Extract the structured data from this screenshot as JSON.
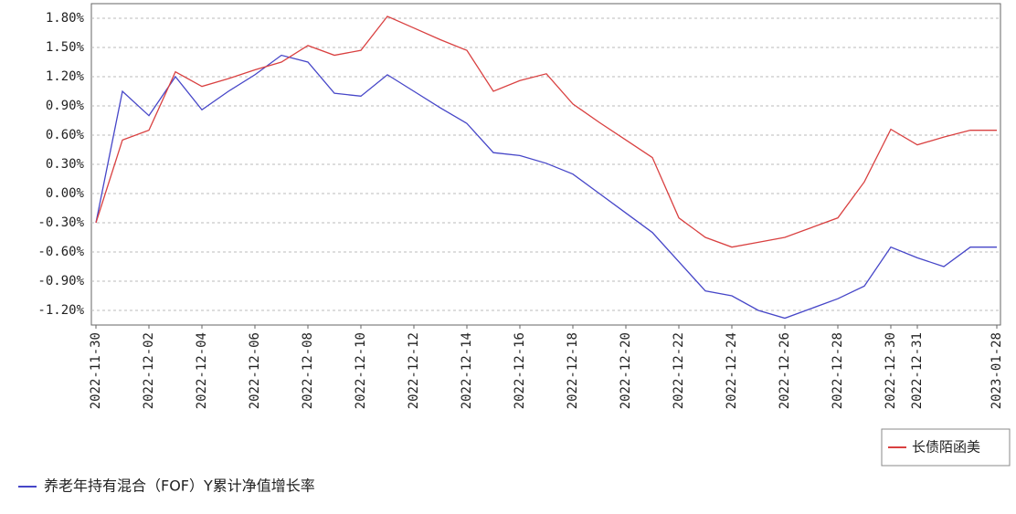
{
  "chart_data": {
    "type": "line",
    "title": "养老年持有混合（FOF）Y累计净值增长率",
    "categories": [
      "2022-11-30",
      null,
      "2022-12-02",
      null,
      "2022-12-04",
      null,
      "2022-12-06",
      null,
      "2022-12-08",
      null,
      "2022-12-10",
      null,
      "2022-12-12",
      null,
      "2022-12-14",
      null,
      "2022-12-16",
      null,
      "2022-12-18",
      null,
      "2022-12-20",
      null,
      "2022-12-22",
      null,
      "2022-12-24",
      null,
      "2022-12-26",
      null,
      "2022-12-28",
      null,
      "2022-12-30",
      "2022-12-31",
      null,
      null,
      "2023-01-28"
    ],
    "series": [
      {
        "name": "养老年持有混合（FOF）Y累计净值增长率",
        "color": "#4646c8",
        "values": [
          -0.3,
          1.05,
          0.8,
          1.2,
          0.86,
          1.05,
          1.22,
          1.42,
          1.35,
          1.03,
          1.0,
          1.22,
          1.05,
          0.88,
          0.72,
          0.42,
          0.39,
          0.31,
          0.2,
          0.0,
          -0.2,
          -0.4,
          -0.7,
          -1.0,
          -1.05,
          -1.2,
          -1.28,
          -1.18,
          -1.08,
          -0.95,
          -0.55,
          -0.66,
          -0.75,
          -0.55,
          -0.55
        ]
      },
      {
        "name": "长债陌函美",
        "color": "#d94040",
        "values": [
          -0.3,
          0.55,
          0.65,
          1.25,
          1.1,
          1.18,
          1.27,
          1.35,
          1.52,
          1.42,
          1.47,
          1.82,
          1.7,
          1.58,
          1.47,
          1.05,
          1.16,
          1.23,
          0.92,
          0.73,
          0.55,
          0.37,
          -0.25,
          -0.45,
          -0.55,
          -0.5,
          -0.45,
          -0.35,
          -0.25,
          0.12,
          0.66,
          0.5,
          0.58,
          0.65,
          0.65
        ]
      }
    ],
    "ylim": [
      -1.35,
      1.95
    ],
    "yticks": [
      {
        "value": -1.2,
        "label": "-1.20%"
      },
      {
        "value": -0.9,
        "label": "-0.90%"
      },
      {
        "value": -0.6,
        "label": "-0.60%"
      },
      {
        "value": -0.3,
        "label": "-0.30%"
      },
      {
        "value": 0,
        "label": "0.00%"
      },
      {
        "value": 0.3,
        "label": "0.30%"
      },
      {
        "value": 0.6,
        "label": "0.60%"
      },
      {
        "value": 0.9,
        "label": "0.90%"
      },
      {
        "value": 1.2,
        "label": "1.20%"
      },
      {
        "value": 1.5,
        "label": "1.50%"
      },
      {
        "value": 1.8,
        "label": "1.80%"
      }
    ],
    "grid": true
  }
}
